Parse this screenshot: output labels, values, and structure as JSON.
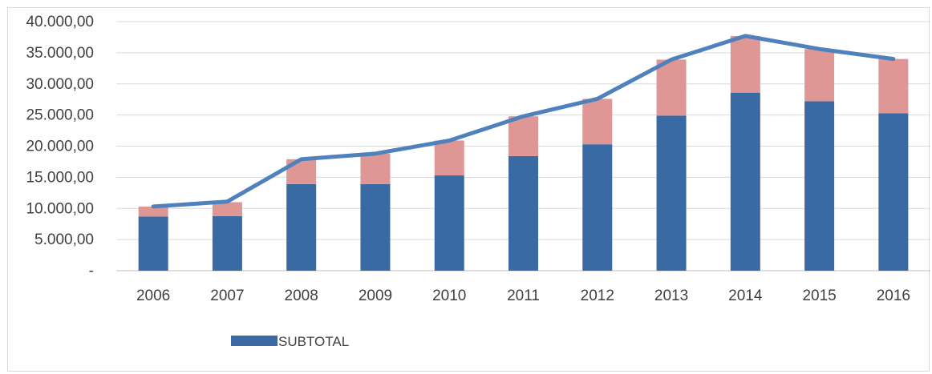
{
  "chart_data": {
    "type": "bar",
    "stacked": true,
    "categories": [
      "2006",
      "2007",
      "2008",
      "2009",
      "2010",
      "2011",
      "2012",
      "2013",
      "2014",
      "2015",
      "2016"
    ],
    "series": [
      {
        "name": "SUBTOTAL",
        "kind": "bar",
        "color": "#3a6aa4",
        "values": [
          8700,
          8750,
          13900,
          13900,
          15300,
          18400,
          20300,
          24900,
          28600,
          27200,
          25300
        ]
      },
      {
        "kind": "bar",
        "color": "#de9795",
        "values": [
          1600,
          2250,
          4000,
          4900,
          5600,
          6400,
          7300,
          9000,
          9100,
          8400,
          8700
        ]
      },
      {
        "kind": "line",
        "color": "#4f81bd",
        "values": [
          10300,
          11100,
          17900,
          18800,
          20900,
          24800,
          27600,
          33900,
          37700,
          35600,
          34000
        ]
      }
    ],
    "ylim": [
      0,
      40000
    ],
    "yticks": [
      {
        "value": 0,
        "label": "-"
      },
      {
        "value": 5000,
        "label": "5.000,00"
      },
      {
        "value": 10000,
        "label": "10.000,00"
      },
      {
        "value": 15000,
        "label": "15.000,00"
      },
      {
        "value": 20000,
        "label": "20.000,00"
      },
      {
        "value": 25000,
        "label": "25.000,00"
      },
      {
        "value": 30000,
        "label": "30.000,00"
      },
      {
        "value": 35000,
        "label": "35.000,00"
      },
      {
        "value": 40000,
        "label": "40.000,00"
      }
    ],
    "grid": true,
    "legend_position": "bottom-left",
    "legend": [
      {
        "label": "SUBTOTAL",
        "color": "#3a6aa4"
      }
    ]
  }
}
